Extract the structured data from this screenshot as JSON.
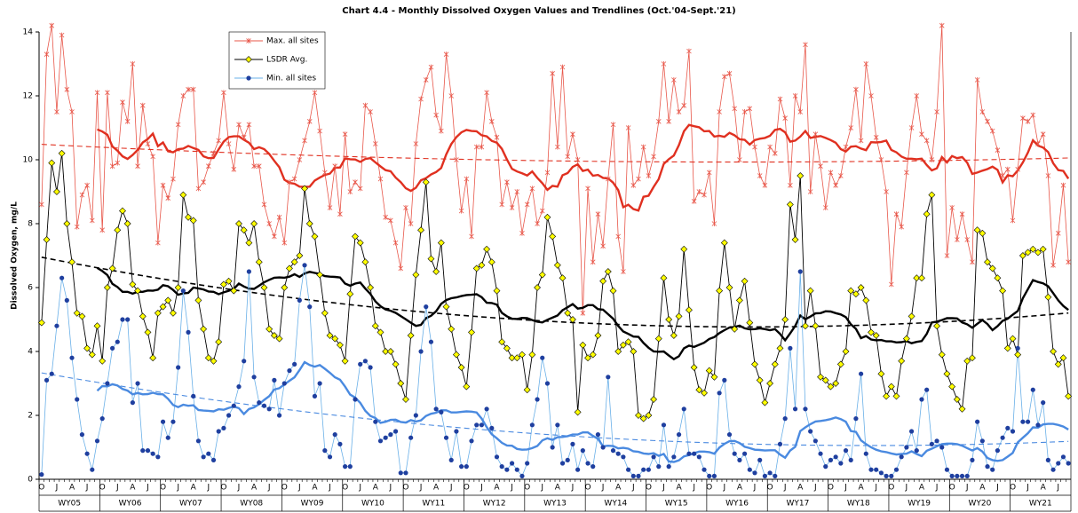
{
  "chart_data": {
    "type": "line",
    "title": "Chart 4.4 - Monthly Dissolved Oxygen Values and Trendlines (Oct.'04-Sept.'21)",
    "y_label": "Dissolved Oxygen, mg/L",
    "ylim": [
      0,
      14
    ],
    "yticks": [
      0,
      2,
      4,
      6,
      8,
      10,
      12,
      14
    ],
    "moving_average_period": 12,
    "trendline_order": 2,
    "categories": [
      "O",
      null,
      null,
      "J",
      null,
      null,
      "A",
      null,
      null,
      "J",
      null,
      null,
      "O",
      null,
      null,
      "J",
      null,
      null,
      "A",
      null,
      null,
      "J",
      null,
      null,
      "O",
      null,
      null,
      "J",
      null,
      null,
      "A",
      null,
      null,
      "J",
      null,
      null,
      "O",
      null,
      null,
      "J",
      null,
      null,
      "A",
      null,
      null,
      "J",
      null,
      null,
      "O",
      null,
      null,
      "J",
      null,
      null,
      "A",
      null,
      null,
      "J",
      null,
      null,
      "O",
      null,
      null,
      "J",
      null,
      null,
      "A",
      null,
      null,
      "J",
      null,
      null,
      "O",
      null,
      null,
      "J",
      null,
      null,
      "A",
      null,
      null,
      "J",
      null,
      null,
      "O",
      null,
      null,
      "J",
      null,
      null,
      "A",
      null,
      null,
      "J",
      null,
      null,
      "O",
      null,
      null,
      "J",
      null,
      null,
      "A",
      null,
      null,
      "J",
      null,
      null,
      "O",
      null,
      null,
      "J",
      null,
      null,
      "A",
      null,
      null,
      "J",
      null,
      null,
      "O",
      null,
      null,
      "J",
      null,
      null,
      "A",
      null,
      null,
      "J",
      null,
      null,
      "O",
      null,
      null,
      "J",
      null,
      null,
      "A",
      null,
      null,
      "J",
      null,
      null,
      "O",
      null,
      null,
      "J",
      null,
      null,
      "A",
      null,
      null,
      "J",
      null,
      null,
      "O",
      null,
      null,
      "J",
      null,
      null,
      "A",
      null,
      null,
      "J",
      null,
      null,
      "O",
      null,
      null,
      "J",
      null,
      null,
      "A",
      null,
      null,
      "J",
      null,
      null,
      "O",
      null,
      null,
      "J",
      null,
      null,
      "A",
      null,
      null,
      "J",
      null,
      null,
      "O",
      null,
      null,
      "J",
      null,
      null,
      "A",
      null,
      null,
      "J",
      null,
      null
    ],
    "groups": [
      "WY05",
      "WY06",
      "WY07",
      "WY08",
      "WY09",
      "WY10",
      "WY11",
      "WY12",
      "WY13",
      "WY14",
      "WY15",
      "WY16",
      "WY17",
      "WY18",
      "WY19",
      "WY20",
      "WY21"
    ],
    "series": [
      {
        "name": "Max. all sites",
        "color": "#e8574a",
        "average_color": "#e03020",
        "marker": "x",
        "marker_color": "#e8574a",
        "values": [
          8.6,
          13.3,
          14.2,
          11.5,
          13.9,
          12.2,
          11.5,
          7.9,
          8.9,
          9.2,
          8.1,
          12.1,
          7.8,
          12.1,
          9.8,
          9.9,
          11.8,
          11.2,
          13.0,
          9.8,
          11.7,
          10.5,
          10.1,
          7.4,
          9.2,
          8.8,
          9.4,
          11.1,
          12.0,
          12.2,
          12.2,
          9.1,
          9.3,
          9.8,
          10.2,
          10.6,
          12.1,
          10.5,
          9.7,
          11.1,
          10.7,
          11.1,
          9.8,
          9.8,
          8.6,
          8.0,
          7.6,
          8.2,
          7.4,
          9.3,
          9.4,
          10.0,
          10.6,
          11.2,
          12.1,
          10.9,
          9.6,
          8.5,
          9.8,
          8.3,
          10.8,
          9.0,
          9.3,
          9.1,
          11.7,
          11.5,
          10.5,
          9.4,
          8.2,
          8.1,
          7.4,
          6.6,
          8.5,
          8.0,
          10.5,
          11.9,
          12.5,
          12.9,
          11.4,
          10.9,
          13.3,
          12.0,
          10.0,
          8.4,
          9.4,
          7.6,
          10.4,
          10.4,
          12.1,
          11.2,
          10.7,
          8.6,
          9.3,
          8.5,
          9.0,
          7.7,
          8.6,
          9.1,
          8.0,
          8.4,
          9.6,
          12.7,
          10.4,
          12.9,
          10.1,
          10.8,
          10.0,
          5.2,
          9.1,
          6.8,
          8.3,
          7.3,
          9.4,
          11.1,
          7.6,
          6.5,
          11.0,
          9.2,
          9.4,
          10.4,
          9.5,
          10.1,
          11.2,
          13.0,
          11.2,
          12.5,
          11.5,
          11.7,
          13.4,
          8.7,
          9.0,
          8.9,
          9.6,
          8.0,
          11.5,
          12.6,
          12.7,
          11.6,
          10.0,
          11.5,
          11.6,
          10.4,
          9.5,
          9.2,
          10.4,
          10.2,
          11.9,
          11.3,
          9.2,
          12.0,
          11.5,
          13.6,
          9.0,
          10.8,
          9.8,
          8.5,
          9.6,
          9.2,
          9.5,
          10.4,
          11.0,
          12.2,
          10.6,
          13.0,
          12.0,
          10.7,
          10.0,
          9.0,
          6.1,
          8.3,
          7.9,
          9.6,
          11.0,
          12.0,
          10.8,
          10.6,
          10.0,
          11.5,
          14.2,
          7.0,
          8.5,
          7.5,
          8.3,
          7.5,
          6.8,
          12.5,
          11.5,
          11.2,
          10.9,
          10.3,
          9.5,
          9.7,
          8.1,
          9.7,
          11.3,
          11.2,
          11.4,
          10.5,
          10.8,
          9.5,
          6.7,
          7.7,
          9.2,
          6.8
        ]
      },
      {
        "name": "LSDR Avg.",
        "color": "#000000",
        "average_color": "#000000",
        "marker": "diamond",
        "marker_color": "#ffff00",
        "values": [
          4.9,
          7.5,
          9.9,
          9.0,
          10.2,
          8.0,
          6.8,
          5.2,
          5.1,
          4.1,
          3.9,
          4.8,
          3.7,
          6.0,
          6.6,
          7.8,
          8.4,
          8.0,
          6.1,
          5.9,
          5.1,
          4.6,
          3.8,
          5.2,
          5.4,
          5.6,
          5.2,
          6.0,
          8.9,
          8.2,
          8.1,
          5.6,
          4.7,
          3.8,
          3.7,
          4.3,
          6.1,
          6.2,
          5.9,
          8.0,
          7.8,
          7.4,
          8.0,
          6.8,
          6.0,
          4.7,
          4.5,
          4.4,
          6.0,
          6.6,
          6.8,
          7.0,
          9.1,
          8.0,
          7.6,
          6.4,
          5.2,
          4.5,
          4.4,
          4.2,
          3.7,
          5.8,
          7.6,
          7.4,
          6.8,
          6.0,
          4.8,
          4.6,
          4.0,
          4.0,
          3.6,
          3.0,
          2.5,
          4.5,
          6.4,
          7.8,
          9.3,
          6.9,
          6.5,
          7.4,
          5.4,
          4.7,
          3.9,
          3.5,
          2.9,
          4.6,
          6.6,
          6.7,
          7.2,
          6.8,
          5.9,
          4.3,
          4.1,
          3.8,
          3.8,
          3.9,
          2.8,
          3.9,
          6.0,
          6.4,
          8.2,
          7.6,
          6.7,
          6.3,
          5.2,
          5.0,
          2.1,
          4.2,
          3.8,
          3.9,
          4.5,
          6.2,
          6.5,
          5.9,
          4.0,
          4.2,
          4.3,
          4.0,
          2.0,
          1.9,
          2.0,
          2.5,
          4.4,
          6.3,
          5.0,
          4.5,
          5.1,
          7.2,
          5.3,
          3.5,
          2.8,
          2.7,
          3.4,
          3.2,
          5.9,
          7.4,
          6.0,
          4.7,
          5.6,
          6.2,
          4.9,
          3.6,
          3.1,
          2.4,
          3.0,
          3.6,
          4.1,
          5.0,
          8.6,
          7.5,
          9.5,
          4.8,
          5.9,
          4.8,
          3.2,
          3.1,
          2.9,
          3.0,
          3.6,
          4.0,
          5.9,
          5.8,
          6.0,
          5.6,
          4.6,
          4.5,
          3.3,
          2.6,
          2.9,
          2.6,
          3.7,
          4.4,
          5.1,
          6.3,
          6.3,
          8.3,
          8.9,
          4.8,
          3.9,
          3.3,
          2.9,
          2.5,
          2.2,
          3.7,
          3.8,
          7.8,
          7.7,
          6.8,
          6.6,
          6.3,
          5.9,
          4.1,
          4.4,
          3.9,
          7.0,
          7.1,
          7.2,
          7.1,
          7.2,
          5.7,
          4.0,
          3.6,
          3.8,
          2.6
        ]
      },
      {
        "name": "Min. all sites",
        "color": "#6ab0e8",
        "average_color": "#4a8ae0",
        "marker": "circle",
        "marker_color": "#1f3f9f",
        "values": [
          0.15,
          3.1,
          3.3,
          4.8,
          6.3,
          5.6,
          3.8,
          2.5,
          1.4,
          0.8,
          0.3,
          1.2,
          1.9,
          3.0,
          4.1,
          4.3,
          5.0,
          5.0,
          2.4,
          3.0,
          0.9,
          0.9,
          0.8,
          0.7,
          1.8,
          1.3,
          1.8,
          3.5,
          5.9,
          4.6,
          2.6,
          1.2,
          0.7,
          0.8,
          0.6,
          1.5,
          1.6,
          2.0,
          2.3,
          2.9,
          3.7,
          6.5,
          3.2,
          2.4,
          2.3,
          2.2,
          3.1,
          2.0,
          3.0,
          3.4,
          3.6,
          5.6,
          6.7,
          5.4,
          2.6,
          3.0,
          0.9,
          0.7,
          1.4,
          1.1,
          0.4,
          0.4,
          2.5,
          3.6,
          3.7,
          3.5,
          1.8,
          1.2,
          1.3,
          1.4,
          1.5,
          0.2,
          0.2,
          1.3,
          2.0,
          4.0,
          5.4,
          4.3,
          2.2,
          2.1,
          1.3,
          0.6,
          1.5,
          0.4,
          0.4,
          1.2,
          1.7,
          1.7,
          2.2,
          1.6,
          0.7,
          0.4,
          0.3,
          0.5,
          0.3,
          0.1,
          0.5,
          1.7,
          2.5,
          3.8,
          3.0,
          1.0,
          1.7,
          0.5,
          0.6,
          1.1,
          0.3,
          0.9,
          0.5,
          0.4,
          1.4,
          1.0,
          3.2,
          0.9,
          0.8,
          0.7,
          0.3,
          0.1,
          0.1,
          0.3,
          0.3,
          0.7,
          0.4,
          1.7,
          0.4,
          0.7,
          1.4,
          2.2,
          0.8,
          0.8,
          0.7,
          0.3,
          0.1,
          0.1,
          2.7,
          3.1,
          1.4,
          0.8,
          0.6,
          0.8,
          0.3,
          0.2,
          0.6,
          0.1,
          0.2,
          0.1,
          1.1,
          1.9,
          4.1,
          2.2,
          6.5,
          2.2,
          1.5,
          1.2,
          0.8,
          0.4,
          0.6,
          0.7,
          0.5,
          0.9,
          0.6,
          1.9,
          3.3,
          0.8,
          0.3,
          0.3,
          0.2,
          0.1,
          0.1,
          0.3,
          0.7,
          1.0,
          1.5,
          0.9,
          2.5,
          2.8,
          1.1,
          1.2,
          1.0,
          0.3,
          0.1,
          0.1,
          0.1,
          0.1,
          0.6,
          1.8,
          1.2,
          0.4,
          0.3,
          0.9,
          1.3,
          1.6,
          1.5,
          4.1,
          1.8,
          1.8,
          2.8,
          1.7,
          2.4,
          0.6,
          0.3,
          0.5,
          0.7,
          0.5
        ]
      }
    ]
  }
}
